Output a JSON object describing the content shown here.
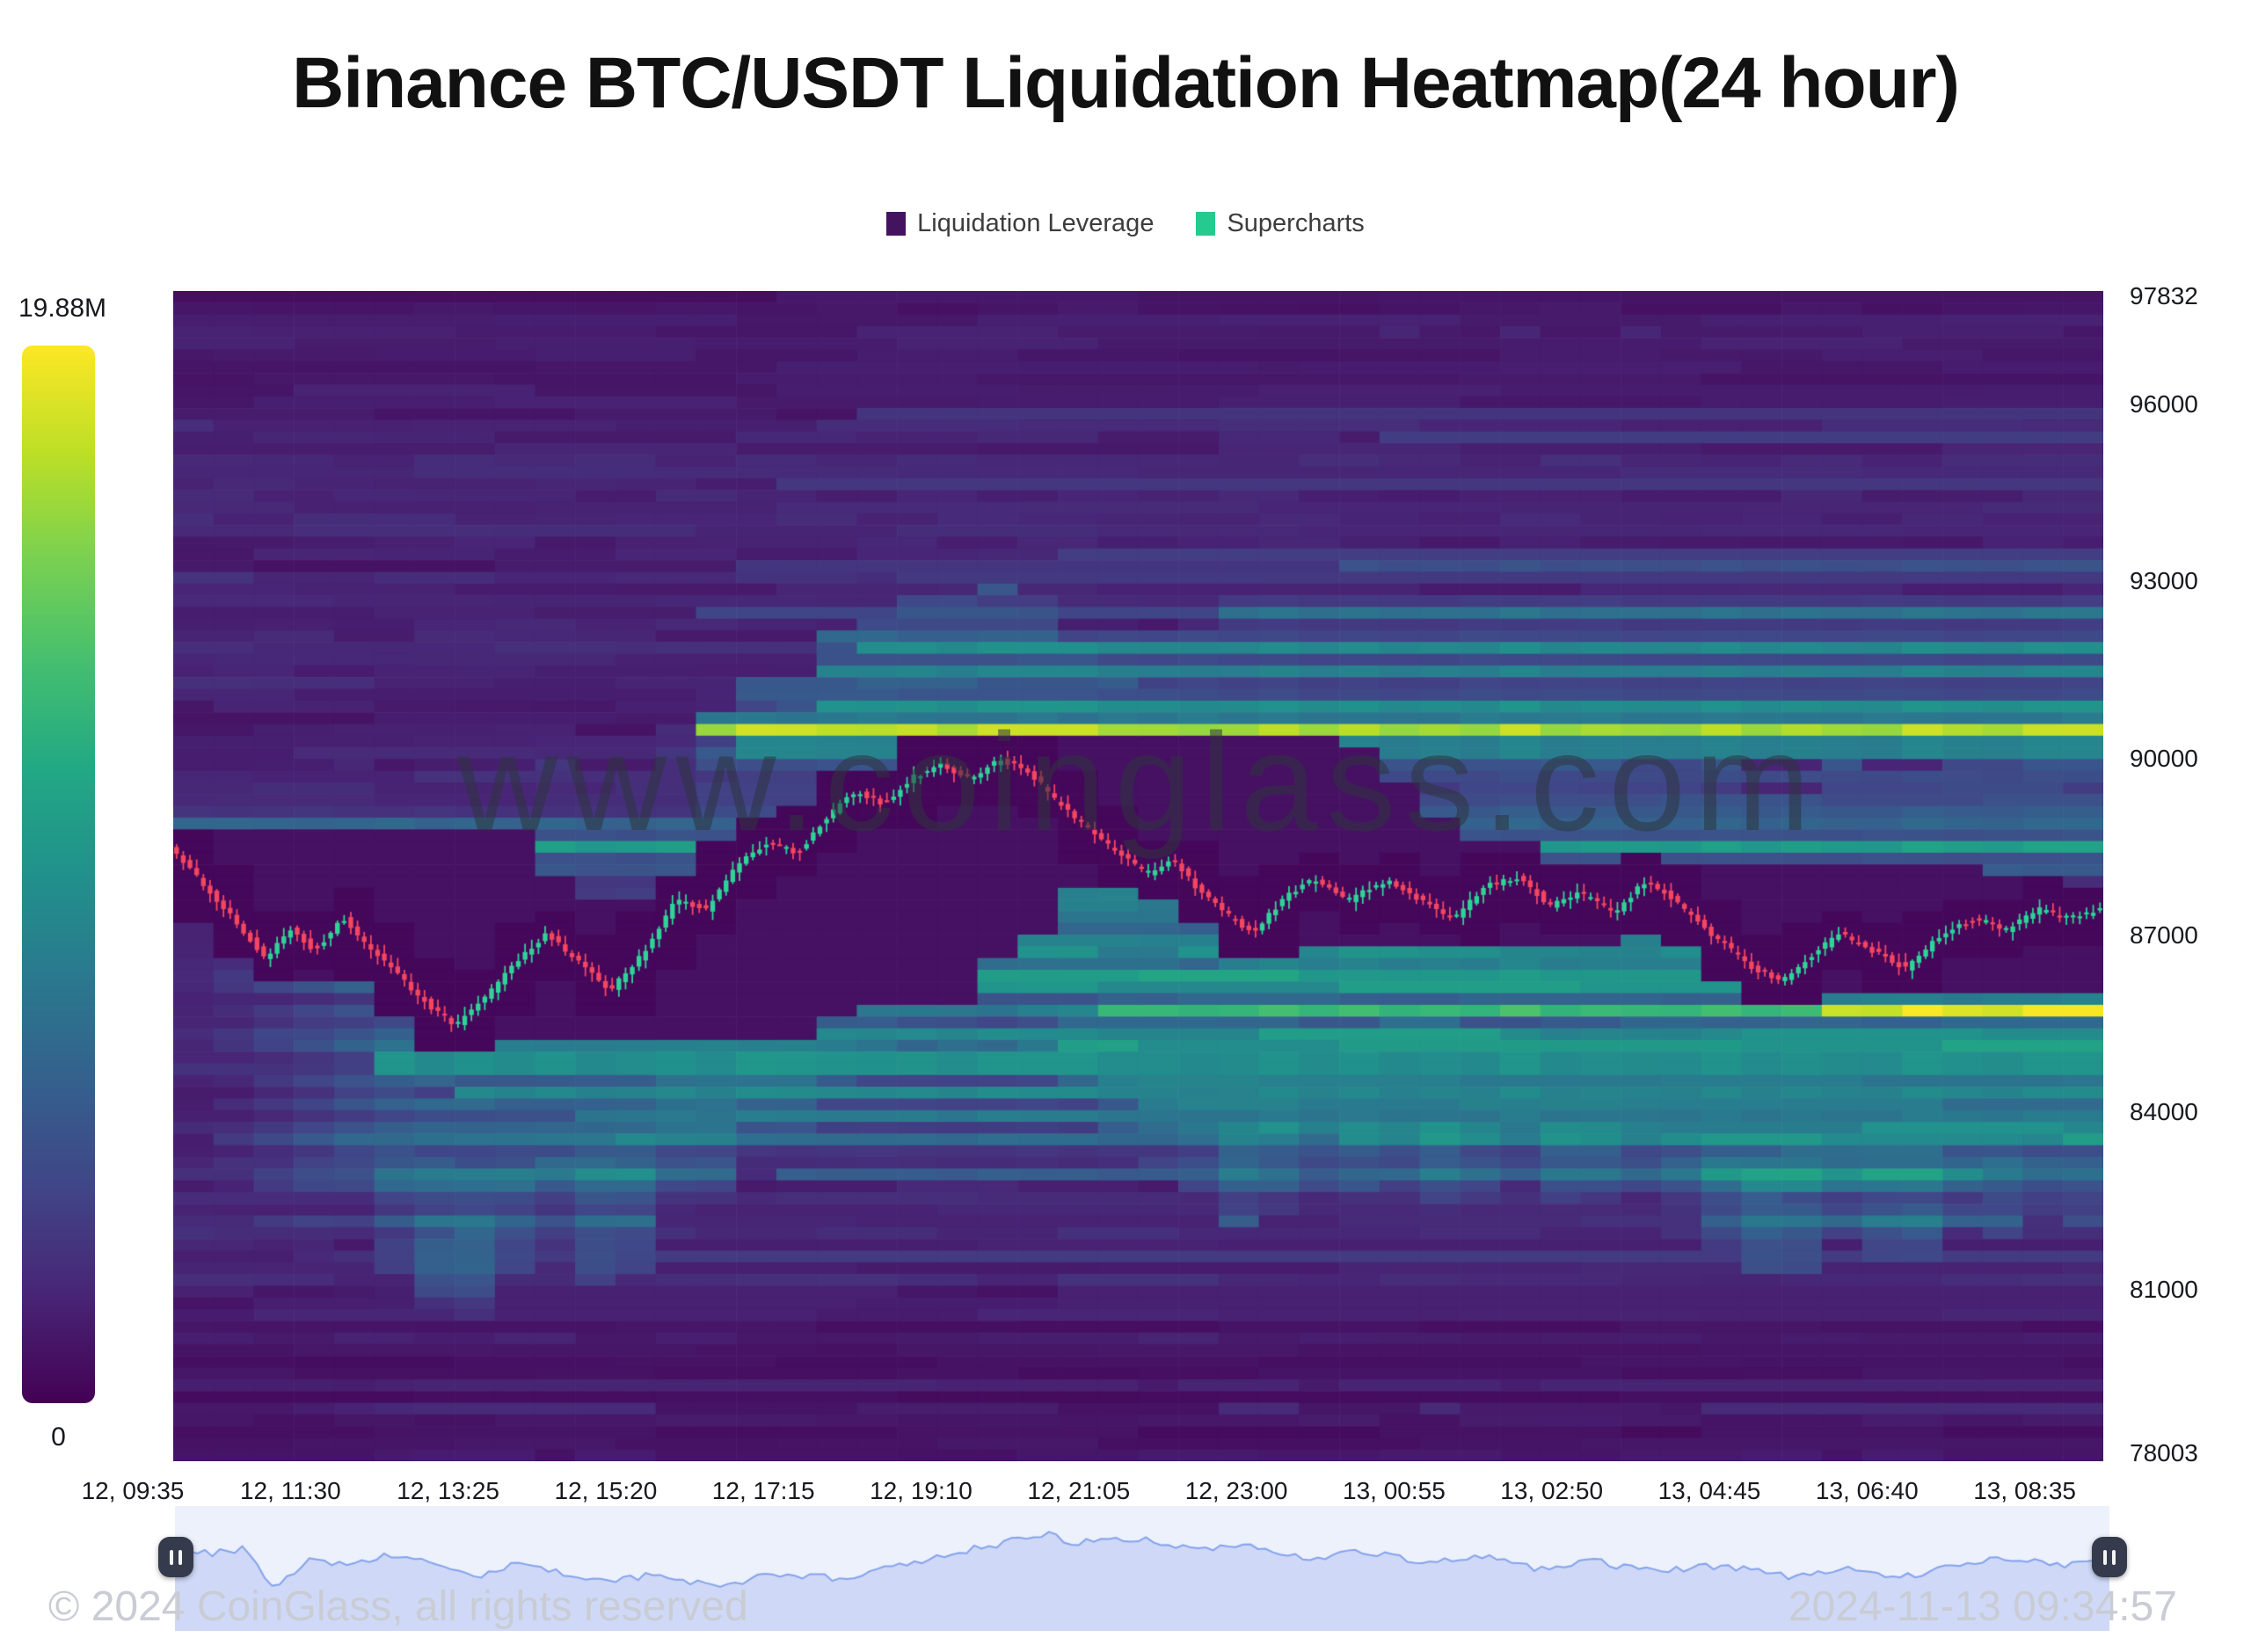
{
  "title": "Binance BTC/USDT Liquidation Heatmap(24 hour)",
  "legend": {
    "items": [
      {
        "label": "Liquidation Leverage",
        "color": "#44135f"
      },
      {
        "label": "Supercharts",
        "color": "#25ca8e"
      }
    ]
  },
  "colorbar": {
    "max_label": "19.88M",
    "min_label": "0",
    "min": 0,
    "max": 19880000,
    "colormap": "viridis"
  },
  "watermark": "www.coinglass.com",
  "footer": {
    "left": "© 2024 CoinGlass, all rights reserved",
    "right": "2024-11-13 09:34:57"
  },
  "icons": {
    "navigator_handle": "pause-icon"
  },
  "chart_data": {
    "type": "heatmap",
    "overlay": "candlestick",
    "title": "Binance BTC/USDT Liquidation Heatmap(24 hour)",
    "legend_position": "top",
    "grid": false,
    "x_labels": [
      "12, 09:35",
      "12, 11:30",
      "12, 13:25",
      "12, 15:20",
      "12, 17:15",
      "12, 19:10",
      "12, 21:05",
      "12, 23:00",
      "13, 00:55",
      "13, 02:50",
      "13, 04:45",
      "13, 06:40",
      "13, 08:35"
    ],
    "y_ticks": [
      97832,
      96000,
      93000,
      90000,
      87000,
      84000,
      81000,
      78003
    ],
    "y_range": [
      78003,
      97832
    ],
    "colorbar_range": {
      "min": 0,
      "max": 19880000,
      "max_label": "19.88M"
    },
    "price_keypoints": [
      [
        0.0,
        88400
      ],
      [
        0.012,
        88000
      ],
      [
        0.03,
        87300
      ],
      [
        0.05,
        86500
      ],
      [
        0.062,
        87050
      ],
      [
        0.075,
        86650
      ],
      [
        0.09,
        87200
      ],
      [
        0.1,
        86800
      ],
      [
        0.118,
        86250
      ],
      [
        0.135,
        85700
      ],
      [
        0.148,
        85380
      ],
      [
        0.162,
        85800
      ],
      [
        0.178,
        86400
      ],
      [
        0.195,
        86950
      ],
      [
        0.21,
        86500
      ],
      [
        0.228,
        85980
      ],
      [
        0.245,
        86600
      ],
      [
        0.262,
        87500
      ],
      [
        0.278,
        87350
      ],
      [
        0.295,
        88150
      ],
      [
        0.31,
        88500
      ],
      [
        0.325,
        88300
      ],
      [
        0.34,
        88900
      ],
      [
        0.355,
        89350
      ],
      [
        0.37,
        89150
      ],
      [
        0.385,
        89600
      ],
      [
        0.4,
        89800
      ],
      [
        0.415,
        89550
      ],
      [
        0.43,
        89900
      ],
      [
        0.445,
        89700
      ],
      [
        0.46,
        89150
      ],
      [
        0.478,
        88650
      ],
      [
        0.495,
        88200
      ],
      [
        0.508,
        87950
      ],
      [
        0.52,
        88200
      ],
      [
        0.535,
        87600
      ],
      [
        0.55,
        87200
      ],
      [
        0.562,
        86950
      ],
      [
        0.578,
        87600
      ],
      [
        0.592,
        87850
      ],
      [
        0.61,
        87500
      ],
      [
        0.63,
        87850
      ],
      [
        0.648,
        87500
      ],
      [
        0.665,
        87200
      ],
      [
        0.682,
        87750
      ],
      [
        0.7,
        87900
      ],
      [
        0.715,
        87400
      ],
      [
        0.73,
        87650
      ],
      [
        0.748,
        87300
      ],
      [
        0.765,
        87850
      ],
      [
        0.78,
        87500
      ],
      [
        0.8,
        86900
      ],
      [
        0.818,
        86400
      ],
      [
        0.835,
        86150
      ],
      [
        0.85,
        86550
      ],
      [
        0.865,
        86950
      ],
      [
        0.882,
        86650
      ],
      [
        0.9,
        86350
      ],
      [
        0.918,
        86950
      ],
      [
        0.935,
        87200
      ],
      [
        0.952,
        87000
      ],
      [
        0.968,
        87350
      ],
      [
        0.985,
        87200
      ],
      [
        1.0,
        87350
      ]
    ],
    "liquidity_bands": [
      [
        88400,
        0.0,
        0.58
      ],
      [
        88850,
        0.0,
        0.34
      ],
      [
        87950,
        0.0,
        0.28
      ],
      [
        86150,
        0.1,
        0.55
      ],
      [
        85250,
        0.12,
        0.48
      ],
      [
        84750,
        0.1,
        0.52
      ],
      [
        84250,
        0.14,
        0.48
      ],
      [
        83850,
        0.2,
        0.42
      ],
      [
        83450,
        0.26,
        0.36
      ],
      [
        82900,
        0.32,
        0.3
      ],
      [
        90450,
        0.27,
        0.93
      ],
      [
        90100,
        0.3,
        0.46
      ],
      [
        90850,
        0.33,
        0.52
      ],
      [
        91350,
        0.34,
        0.46
      ],
      [
        91800,
        0.36,
        0.5
      ],
      [
        92350,
        0.55,
        0.4
      ],
      [
        93100,
        0.6,
        0.26
      ],
      [
        85700,
        0.48,
        0.72
      ],
      [
        85700,
        0.845,
        1.0
      ],
      [
        86450,
        0.55,
        0.46
      ],
      [
        84950,
        0.5,
        0.44
      ],
      [
        89100,
        0.52,
        0.3
      ],
      [
        89600,
        0.56,
        0.24
      ]
    ],
    "candles": {
      "count": 288,
      "interval": "5m",
      "up_color": "#2fd397",
      "down_color": "#f4465f"
    },
    "navigator_points": [
      [
        0.0,
        0.22
      ],
      [
        0.02,
        0.32
      ],
      [
        0.035,
        0.26
      ],
      [
        0.052,
        0.74
      ],
      [
        0.07,
        0.38
      ],
      [
        0.09,
        0.46
      ],
      [
        0.11,
        0.32
      ],
      [
        0.135,
        0.44
      ],
      [
        0.155,
        0.6
      ],
      [
        0.175,
        0.46
      ],
      [
        0.2,
        0.55
      ],
      [
        0.225,
        0.64
      ],
      [
        0.25,
        0.58
      ],
      [
        0.28,
        0.72
      ],
      [
        0.31,
        0.56
      ],
      [
        0.345,
        0.62
      ],
      [
        0.375,
        0.46
      ],
      [
        0.405,
        0.3
      ],
      [
        0.435,
        0.16
      ],
      [
        0.45,
        0.08
      ],
      [
        0.465,
        0.2
      ],
      [
        0.485,
        0.12
      ],
      [
        0.505,
        0.17
      ],
      [
        0.53,
        0.28
      ],
      [
        0.555,
        0.2
      ],
      [
        0.585,
        0.38
      ],
      [
        0.615,
        0.3
      ],
      [
        0.645,
        0.42
      ],
      [
        0.675,
        0.36
      ],
      [
        0.705,
        0.5
      ],
      [
        0.735,
        0.42
      ],
      [
        0.765,
        0.54
      ],
      [
        0.8,
        0.46
      ],
      [
        0.835,
        0.6
      ],
      [
        0.865,
        0.5
      ],
      [
        0.895,
        0.6
      ],
      [
        0.925,
        0.42
      ],
      [
        0.955,
        0.38
      ],
      [
        0.975,
        0.46
      ],
      [
        1.0,
        0.32
      ]
    ],
    "navigator_colors": {
      "background": "#edf1fc",
      "line": "#84a2ec",
      "fill": "rgba(130,156,233,0.28)"
    }
  }
}
